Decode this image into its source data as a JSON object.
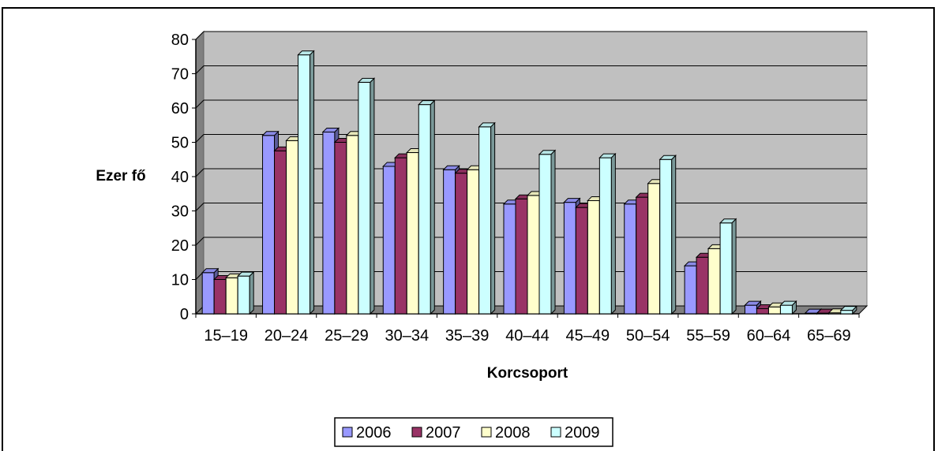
{
  "chart_data": {
    "type": "bar",
    "title": "",
    "xlabel": "Korcsoport",
    "ylabel": "Ezer fő",
    "ylim": [
      0,
      80
    ],
    "yticks": [
      0,
      10,
      20,
      30,
      40,
      50,
      60,
      70,
      80
    ],
    "grid": true,
    "legend_position": "bottom",
    "categories": [
      "15–19",
      "20–24",
      "25–29",
      "30–34",
      "35–39",
      "40–44",
      "45–49",
      "50–54",
      "55–59",
      "60–64",
      "65–69"
    ],
    "series": [
      {
        "name": "2006",
        "color": "#9999ff",
        "values": [
          12,
          52,
          53,
          43,
          42,
          32,
          32.5,
          32,
          14,
          2.5,
          0.2
        ]
      },
      {
        "name": "2007",
        "color": "#993366",
        "values": [
          10,
          47.5,
          50,
          45.5,
          41,
          33.5,
          31,
          34,
          16.5,
          1.5,
          0.2
        ]
      },
      {
        "name": "2008",
        "color": "#ffffcc",
        "values": [
          10.5,
          50.5,
          52,
          47,
          42,
          34.5,
          33,
          38,
          19,
          2,
          0.3
        ]
      },
      {
        "name": "2009",
        "color": "#ccffff",
        "values": [
          11,
          75.5,
          67.5,
          61,
          54.5,
          46.5,
          45.5,
          45,
          26.5,
          2.5,
          1
        ]
      }
    ]
  }
}
